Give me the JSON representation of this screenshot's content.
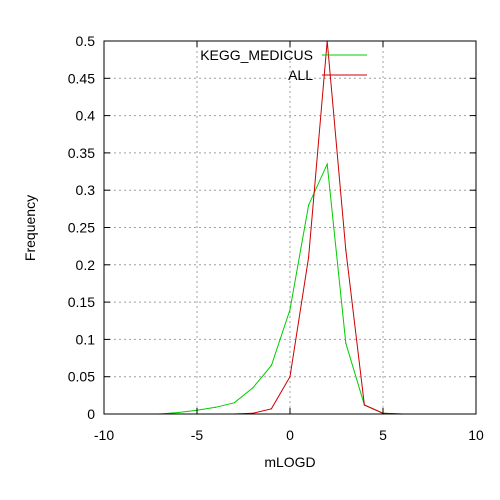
{
  "chart_data": {
    "type": "line",
    "title": "",
    "xlabel": "mLOGD",
    "ylabel": "Frequency",
    "xlim": [
      -10,
      10
    ],
    "ylim": [
      0,
      0.5
    ],
    "xticks": [
      -10,
      -5,
      0,
      5,
      10
    ],
    "xtick_labels": [
      "-10",
      "-5",
      "0",
      "5",
      "10"
    ],
    "yticks": [
      0,
      0.05,
      0.1,
      0.15,
      0.2,
      0.25,
      0.3,
      0.35,
      0.4,
      0.45,
      0.5
    ],
    "ytick_labels": [
      "0",
      "0.05",
      "0.1",
      "0.15",
      "0.2",
      "0.25",
      "0.3",
      "0.35",
      "0.4",
      "0.45",
      "0.5"
    ],
    "grid": true,
    "legend_position": "top-right",
    "series": [
      {
        "name": "KEGG_MEDICUS",
        "color": "#00cc00",
        "x": [
          -7,
          -6,
          -5,
          -4,
          -3,
          -2,
          -1,
          0,
          1,
          2,
          3,
          4,
          5,
          6
        ],
        "y": [
          0,
          0.002,
          0.005,
          0.009,
          0.015,
          0.035,
          0.065,
          0.14,
          0.28,
          0.335,
          0.095,
          0.012,
          0.001,
          0
        ]
      },
      {
        "name": "ALL",
        "color": "#cc0000",
        "x": [
          -3,
          -2,
          -1,
          0,
          1,
          2,
          3,
          4,
          5,
          6
        ],
        "y": [
          0,
          0.001,
          0.007,
          0.05,
          0.21,
          0.5,
          0.22,
          0.012,
          0.001,
          0
        ]
      }
    ]
  }
}
